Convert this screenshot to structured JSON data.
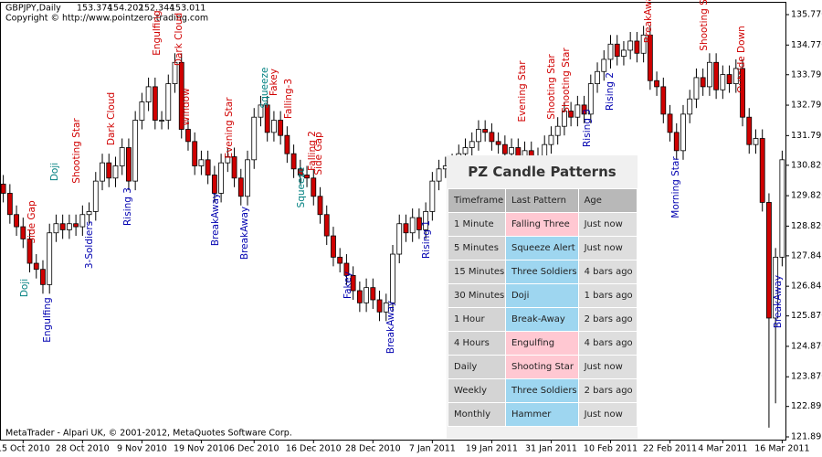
{
  "window": {
    "symbol": "GBPJPY,Daily",
    "quote": [
      153.374,
      154.202,
      152.344,
      153.011
    ],
    "copyright": "Copyright © http://www.pointzero-trading.com",
    "footer": "MetaTrader - Alpari UK, © 2001-2012, MetaQuotes Software Corp."
  },
  "chart": {
    "type": "candlestick",
    "up_color": "#ffffff",
    "down_color": "#d00000",
    "ylim": [
      121.805,
      136.16
    ],
    "yticks": [
      {
        "value": 135.77,
        "label": "135.770"
      },
      {
        "value": 134.77,
        "label": "134.770"
      },
      133.795,
      132.795,
      131.795,
      {
        "value": 130.82,
        "label": "130.820"
      },
      {
        "value": 129.82,
        "label": "129.820"
      },
      {
        "value": 128.82,
        "label": "128.820"
      },
      127.845,
      126.845,
      {
        "value": 125.87,
        "label": "125.870"
      },
      {
        "value": 124.87,
        "label": "124.870"
      },
      {
        "value": 123.87,
        "label": "123.870"
      },
      122.895,
      121.895
    ],
    "categories": [
      null,
      null,
      null,
      "15 Oct 2010",
      null,
      null,
      null,
      null,
      null,
      null,
      null,
      null,
      "28 Oct 2010",
      null,
      null,
      null,
      null,
      null,
      null,
      null,
      null,
      "9 Nov 2010",
      null,
      null,
      null,
      null,
      null,
      null,
      null,
      null,
      "19 Nov 2010",
      null,
      null,
      null,
      null,
      null,
      null,
      null,
      "6 Dec 2010",
      null,
      null,
      null,
      null,
      null,
      null,
      null,
      null,
      "16 Dec 2010",
      null,
      null,
      null,
      null,
      null,
      null,
      null,
      null,
      "28 Dec 2010",
      null,
      null,
      null,
      null,
      null,
      null,
      null,
      null,
      "7 Jan 2011",
      null,
      null,
      null,
      null,
      null,
      null,
      null,
      null,
      "19 Jan 2011",
      null,
      null,
      null,
      null,
      null,
      null,
      null,
      null,
      "31 Jan 2011",
      null,
      null,
      null,
      null,
      null,
      null,
      null,
      null,
      "10 Feb 2011",
      null,
      null,
      null,
      null,
      null,
      null,
      null,
      null,
      "22 Feb 2011",
      null,
      null,
      null,
      null,
      null,
      null,
      null,
      "4 Mar 2011",
      null,
      null,
      null,
      null,
      null,
      null,
      null,
      null,
      "16 Mar 2011"
    ],
    "ohlc": [
      [
        130.2,
        130.5,
        129.6,
        129.9
      ],
      [
        129.9,
        130.2,
        128.9,
        129.2
      ],
      [
        129.2,
        129.5,
        128.5,
        128.8
      ],
      [
        128.8,
        129.1,
        128.1,
        128.4
      ],
      [
        128.4,
        128.7,
        127.3,
        127.6
      ],
      [
        127.6,
        127.9,
        127.1,
        127.4
      ],
      [
        127.4,
        127.7,
        126.6,
        126.9
      ],
      [
        126.9,
        128.9,
        126.6,
        128.6
      ],
      [
        128.6,
        129.2,
        128.3,
        128.9
      ],
      [
        128.9,
        129.2,
        128.4,
        128.7
      ],
      [
        128.7,
        129.2,
        128.4,
        128.9
      ],
      [
        128.9,
        129.2,
        128.5,
        128.8
      ],
      [
        128.8,
        129.5,
        128.5,
        129.2
      ],
      [
        129.2,
        129.6,
        128.9,
        129.3
      ],
      [
        129.3,
        130.6,
        129.0,
        130.3
      ],
      [
        130.3,
        131.2,
        130.0,
        130.9
      ],
      [
        130.9,
        131.2,
        130.1,
        130.4
      ],
      [
        130.4,
        131.1,
        130.1,
        130.8
      ],
      [
        130.8,
        131.7,
        130.5,
        131.4
      ],
      [
        131.4,
        131.7,
        130.0,
        130.3
      ],
      [
        130.3,
        132.6,
        130.0,
        132.3
      ],
      [
        132.3,
        133.2,
        132.0,
        132.9
      ],
      [
        132.9,
        133.7,
        132.6,
        133.4
      ],
      [
        133.4,
        133.7,
        132.0,
        132.3
      ],
      [
        132.3,
        132.6,
        132.0,
        132.3
      ],
      [
        132.3,
        133.8,
        132.0,
        133.5
      ],
      [
        133.5,
        134.5,
        133.2,
        134.2
      ],
      [
        134.2,
        134.5,
        131.7,
        132.0
      ],
      [
        132.0,
        132.3,
        131.3,
        131.6
      ],
      [
        131.6,
        131.9,
        130.5,
        130.8
      ],
      [
        130.8,
        131.3,
        130.5,
        131.0
      ],
      [
        131.0,
        131.3,
        130.2,
        130.5
      ],
      [
        130.5,
        130.8,
        129.6,
        129.9
      ],
      [
        129.9,
        131.2,
        129.6,
        130.9
      ],
      [
        130.9,
        131.4,
        130.6,
        131.1
      ],
      [
        131.1,
        131.4,
        130.1,
        130.4
      ],
      [
        130.4,
        130.7,
        129.5,
        129.8
      ],
      [
        129.8,
        131.3,
        129.5,
        131.0
      ],
      [
        131.0,
        132.7,
        130.7,
        132.4
      ],
      [
        132.4,
        133.1,
        132.1,
        132.8
      ],
      [
        132.8,
        133.1,
        131.6,
        131.9
      ],
      [
        131.9,
        132.6,
        131.6,
        132.3
      ],
      [
        132.3,
        132.6,
        131.5,
        131.8
      ],
      [
        131.8,
        132.1,
        130.9,
        131.2
      ],
      [
        131.2,
        131.5,
        130.4,
        130.7
      ],
      [
        130.7,
        131.0,
        130.2,
        130.5
      ],
      [
        130.5,
        130.8,
        130.1,
        130.4
      ],
      [
        130.4,
        130.7,
        129.5,
        129.8
      ],
      [
        129.8,
        130.1,
        128.9,
        129.2
      ],
      [
        129.2,
        129.5,
        128.2,
        128.5
      ],
      [
        128.5,
        128.8,
        127.5,
        127.8
      ],
      [
        127.8,
        128.1,
        127.3,
        127.6
      ],
      [
        127.6,
        127.9,
        126.9,
        127.2
      ],
      [
        127.2,
        127.5,
        126.4,
        126.7
      ],
      [
        126.7,
        127.0,
        126.0,
        126.3
      ],
      [
        126.3,
        127.1,
        126.0,
        126.8
      ],
      [
        126.8,
        127.1,
        126.1,
        126.4
      ],
      [
        126.4,
        126.7,
        125.7,
        126.0
      ],
      [
        126.0,
        126.6,
        125.7,
        126.3
      ],
      [
        126.3,
        128.2,
        126.0,
        127.9
      ],
      [
        127.9,
        129.2,
        127.6,
        128.9
      ],
      [
        128.9,
        129.2,
        128.3,
        128.6
      ],
      [
        128.6,
        129.4,
        128.3,
        129.1
      ],
      [
        129.1,
        129.4,
        128.4,
        128.7
      ],
      [
        128.7,
        129.6,
        128.4,
        129.3
      ],
      [
        129.3,
        130.6,
        129.0,
        130.3
      ],
      [
        130.3,
        131.0,
        130.0,
        130.7
      ],
      [
        130.7,
        131.1,
        130.4,
        130.8
      ],
      [
        130.8,
        131.2,
        130.5,
        130.9
      ],
      [
        130.9,
        131.5,
        130.6,
        131.2
      ],
      [
        131.2,
        131.7,
        130.9,
        131.4
      ],
      [
        131.4,
        131.9,
        131.1,
        131.6
      ],
      [
        131.6,
        132.3,
        131.3,
        132.0
      ],
      [
        132.0,
        132.3,
        131.6,
        131.9
      ],
      [
        131.9,
        132.2,
        131.3,
        131.6
      ],
      [
        131.6,
        131.9,
        131.2,
        131.5
      ],
      [
        131.5,
        131.8,
        130.9,
        131.2
      ],
      [
        131.2,
        131.7,
        130.9,
        131.4
      ],
      [
        131.4,
        131.7,
        130.6,
        130.9
      ],
      [
        130.9,
        131.6,
        130.6,
        131.3
      ],
      [
        131.3,
        131.6,
        130.7,
        131.0
      ],
      [
        131.0,
        131.4,
        130.7,
        131.1
      ],
      [
        131.1,
        131.8,
        130.8,
        131.5
      ],
      [
        131.5,
        132.1,
        131.2,
        131.8
      ],
      [
        131.8,
        132.4,
        131.5,
        132.1
      ],
      [
        132.1,
        132.9,
        131.8,
        132.6
      ],
      [
        132.6,
        132.9,
        132.1,
        132.4
      ],
      [
        132.4,
        133.1,
        132.1,
        132.8
      ],
      [
        132.8,
        133.1,
        132.2,
        132.5
      ],
      [
        132.5,
        133.8,
        132.2,
        133.5
      ],
      [
        133.5,
        134.2,
        133.2,
        133.9
      ],
      [
        133.9,
        134.6,
        133.6,
        134.3
      ],
      [
        134.3,
        135.1,
        134.0,
        134.8
      ],
      [
        134.8,
        135.1,
        134.1,
        134.4
      ],
      [
        134.4,
        134.9,
        134.1,
        134.6
      ],
      [
        134.6,
        135.2,
        134.3,
        134.9
      ],
      [
        134.9,
        135.2,
        134.2,
        134.5
      ],
      [
        134.5,
        135.4,
        134.2,
        135.1
      ],
      [
        135.1,
        135.4,
        133.3,
        133.6
      ],
      [
        133.6,
        133.9,
        133.1,
        133.4
      ],
      [
        133.4,
        133.7,
        132.2,
        132.5
      ],
      [
        132.5,
        132.8,
        131.6,
        131.9
      ],
      [
        131.9,
        132.2,
        131.0,
        131.3
      ],
      [
        131.3,
        132.8,
        131.0,
        132.5
      ],
      [
        132.5,
        133.3,
        132.2,
        133.0
      ],
      [
        133.0,
        134.0,
        132.7,
        133.7
      ],
      [
        133.7,
        134.0,
        133.1,
        133.4
      ],
      [
        133.4,
        134.5,
        133.1,
        134.2
      ],
      [
        134.2,
        134.5,
        133.0,
        133.3
      ],
      [
        133.3,
        134.1,
        133.0,
        133.8
      ],
      [
        133.8,
        134.1,
        133.2,
        133.5
      ],
      [
        133.5,
        134.3,
        133.2,
        134.0
      ],
      [
        134.0,
        134.3,
        132.1,
        132.4
      ],
      [
        132.4,
        132.7,
        131.2,
        131.5
      ],
      [
        131.5,
        132.0,
        131.2,
        131.7
      ],
      [
        131.7,
        132.0,
        129.3,
        129.6
      ],
      [
        129.6,
        129.9,
        122.2,
        125.8
      ],
      [
        125.8,
        128.1,
        123.0,
        127.8
      ],
      [
        127.8,
        131.3,
        127.5,
        131.0
      ]
    ],
    "pattern_labels": [
      {
        "text": "Doji",
        "color": "#008080"
      },
      {
        "text": "Side Gap",
        "color": "#d00000"
      },
      {
        "text": "Engulfing",
        "color": "#0000b0"
      },
      {
        "text": "Doji",
        "color": "#008080"
      },
      {
        "text": "3-Soldiers",
        "color": "#0000b0"
      },
      {
        "text": "Shooting Star",
        "color": "#d00000"
      },
      {
        "text": "Dark Cloud",
        "color": "#d00000"
      },
      {
        "text": "Rising 3",
        "color": "#0000b0"
      },
      {
        "text": "Engulfing",
        "color": "#d00000"
      },
      {
        "text": "Dark Cloud",
        "color": "#d00000"
      },
      {
        "text": "Window",
        "color": "#d00000"
      },
      {
        "text": "BreakAway",
        "color": "#0000b0"
      },
      {
        "text": "Evening Star",
        "color": "#d00000"
      },
      {
        "text": "BreakAway",
        "color": "#0000b0"
      },
      {
        "text": "Squeeze",
        "color": "#008080"
      },
      {
        "text": "Fakey",
        "color": "#d00000"
      },
      {
        "text": "Falling-3",
        "color": "#d00000"
      },
      {
        "text": "Squeeze",
        "color": "#008080"
      },
      {
        "text": "Falling 2",
        "color": "#d00000"
      },
      {
        "text": "Side Gap",
        "color": "#d00000"
      },
      {
        "text": "Fakey",
        "color": "#0000b0"
      },
      {
        "text": "BreakAway",
        "color": "#0000b0"
      },
      {
        "text": "Rising 1",
        "color": "#0000b0"
      },
      {
        "text": "Evening Star",
        "color": "#d00000"
      },
      {
        "text": "Shooting Star",
        "color": "#d00000"
      },
      {
        "text": "Shooting Star",
        "color": "#d00000"
      },
      {
        "text": "Rising 3",
        "color": "#0000b0"
      },
      {
        "text": "Rising 2",
        "color": "#0000b0"
      },
      {
        "text": "BreakAway",
        "color": "#d00000"
      },
      {
        "text": "Morning Star",
        "color": "#0000b0"
      },
      {
        "text": "Shooting Star",
        "color": "#d00000"
      },
      {
        "text": "Outside Down",
        "color": "#d00000"
      },
      {
        "text": "BreakAway",
        "color": "#0000b0"
      }
    ]
  },
  "table": {
    "title": "PZ Candle Patterns",
    "header": [
      "Timeframe",
      "Last Pattern",
      "Age"
    ],
    "rows": [
      [
        "1 Minute",
        "Falling Three",
        "Just now"
      ],
      [
        "5 Minutes",
        "Squeeze Alert",
        "Just now"
      ],
      [
        "15 Minutes",
        "Three Soldiers",
        "4 bars ago"
      ],
      [
        "30 Minutes",
        "Doji",
        "1 bars ago"
      ],
      [
        "1 Hour",
        "Break-Away",
        "2 bars ago"
      ],
      [
        "4 Hours",
        "Engulfing",
        "4 bars ago"
      ],
      [
        "Daily",
        "Shooting Star",
        "Just now"
      ],
      [
        "Weekly",
        "Three Soldiers",
        "2 bars ago"
      ],
      [
        "Monthly",
        "Hammer",
        "Just now"
      ]
    ],
    "pattern_colors": [
      "#ffc8d2",
      "#9ed6f0",
      "#9ed6f0",
      "#9ed6f0",
      "#9ed6f0",
      "#ffc8d2",
      "#ffc8d2",
      "#9ed6f0",
      "#9ed6f0"
    ]
  }
}
